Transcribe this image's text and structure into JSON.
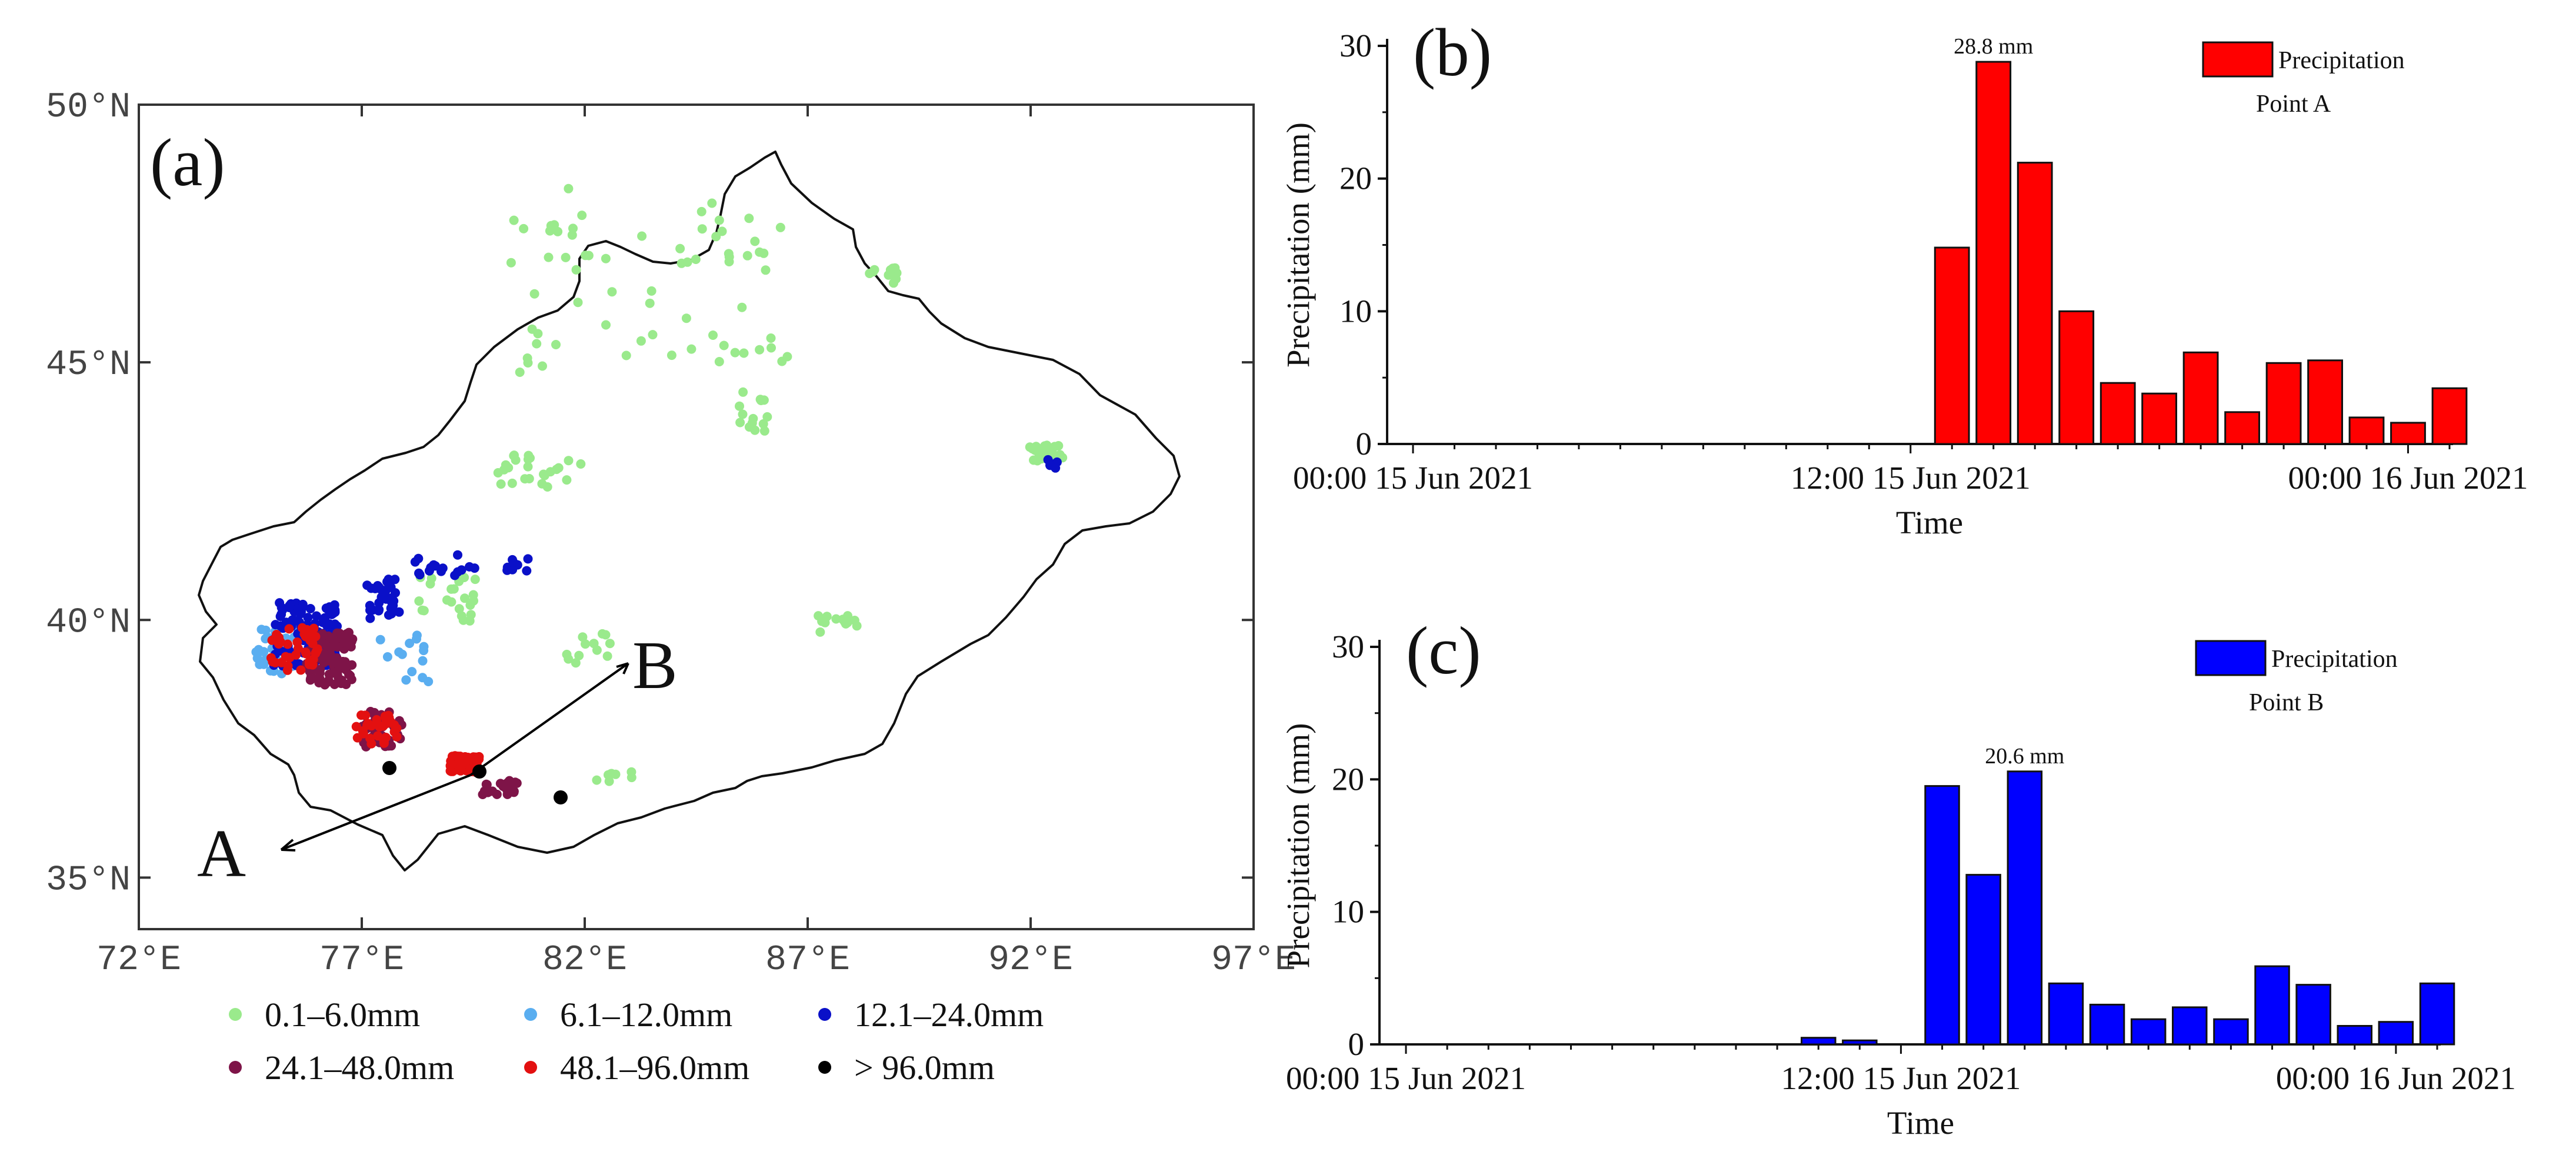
{
  "panel_a": {
    "panel_label": "(a)",
    "lat_ticks": [
      "35°N",
      "40°N",
      "45°N",
      "50°N"
    ],
    "lon_ticks": [
      "72°E",
      "77°E",
      "82°E",
      "87°E",
      "92°E",
      "97°E"
    ],
    "point_a_label": "A",
    "point_b_label": "B",
    "legend": [
      {
        "label": "0.1–6.0mm",
        "color": "#9aea8c"
      },
      {
        "label": "6.1–12.0mm",
        "color": "#5aaef0"
      },
      {
        "label": "12.1–24.0mm",
        "color": "#0a10c8"
      },
      {
        "label": "24.1–48.0mm",
        "color": "#7e1448"
      },
      {
        "label": "48.1–96.0mm",
        "color": "#e31010"
      },
      {
        "label": "> 96.0mm",
        "color": "#000000"
      }
    ]
  },
  "chart_data": [
    {
      "type": "bar",
      "panel_label": "(b)",
      "title": "",
      "xlabel": "Time",
      "ylabel": "Precipitation (mm)",
      "ylim": [
        0,
        30
      ],
      "yticks": [
        "0",
        "10",
        "20",
        "30"
      ],
      "xticks": [
        "00:00 15 Jun 2021",
        "12:00 15 Jun 2021",
        "00:00 16 Jun 2021"
      ],
      "xrange_hours": [
        0,
        25
      ],
      "legend_label": "Precipitation",
      "legend_sub": "Point A",
      "color": "#ff0000",
      "annotation": "28.8 mm",
      "annotation_hour": 14,
      "bars": [
        {
          "hour": 13,
          "value": 14.8
        },
        {
          "hour": 14,
          "value": 28.8
        },
        {
          "hour": 15,
          "value": 21.2
        },
        {
          "hour": 16,
          "value": 10.0
        },
        {
          "hour": 17,
          "value": 4.6
        },
        {
          "hour": 18,
          "value": 3.8
        },
        {
          "hour": 19,
          "value": 6.9
        },
        {
          "hour": 20,
          "value": 2.4
        },
        {
          "hour": 21,
          "value": 6.1
        },
        {
          "hour": 22,
          "value": 6.3
        },
        {
          "hour": 23,
          "value": 2.0
        },
        {
          "hour": 24,
          "value": 1.6
        },
        {
          "hour": 25,
          "value": 4.2
        }
      ]
    },
    {
      "type": "bar",
      "panel_label": "(c)",
      "title": "",
      "xlabel": "Time",
      "ylabel": "Precipitation (mm)",
      "ylim": [
        0,
        30
      ],
      "yticks": [
        "0",
        "10",
        "20",
        "30"
      ],
      "xticks": [
        "00:00 15 Jun 2021",
        "12:00 15 Jun 2021",
        "00:00 16 Jun 2021"
      ],
      "xrange_hours": [
        0,
        25
      ],
      "legend_label": "Precipitation",
      "legend_sub": "Point B",
      "color": "#0000ff",
      "annotation": "20.6 mm",
      "annotation_hour": 15,
      "bars": [
        {
          "hour": 10,
          "value": 0.5
        },
        {
          "hour": 11,
          "value": 0.3
        },
        {
          "hour": 13,
          "value": 19.5
        },
        {
          "hour": 14,
          "value": 12.8
        },
        {
          "hour": 15,
          "value": 20.6
        },
        {
          "hour": 16,
          "value": 4.6
        },
        {
          "hour": 17,
          "value": 3.0
        },
        {
          "hour": 18,
          "value": 1.9
        },
        {
          "hour": 19,
          "value": 2.8
        },
        {
          "hour": 20,
          "value": 1.9
        },
        {
          "hour": 21,
          "value": 5.9
        },
        {
          "hour": 22,
          "value": 4.5
        },
        {
          "hour": 23,
          "value": 1.4
        },
        {
          "hour": 24,
          "value": 1.7
        },
        {
          "hour": 25,
          "value": 4.6
        }
      ]
    }
  ]
}
